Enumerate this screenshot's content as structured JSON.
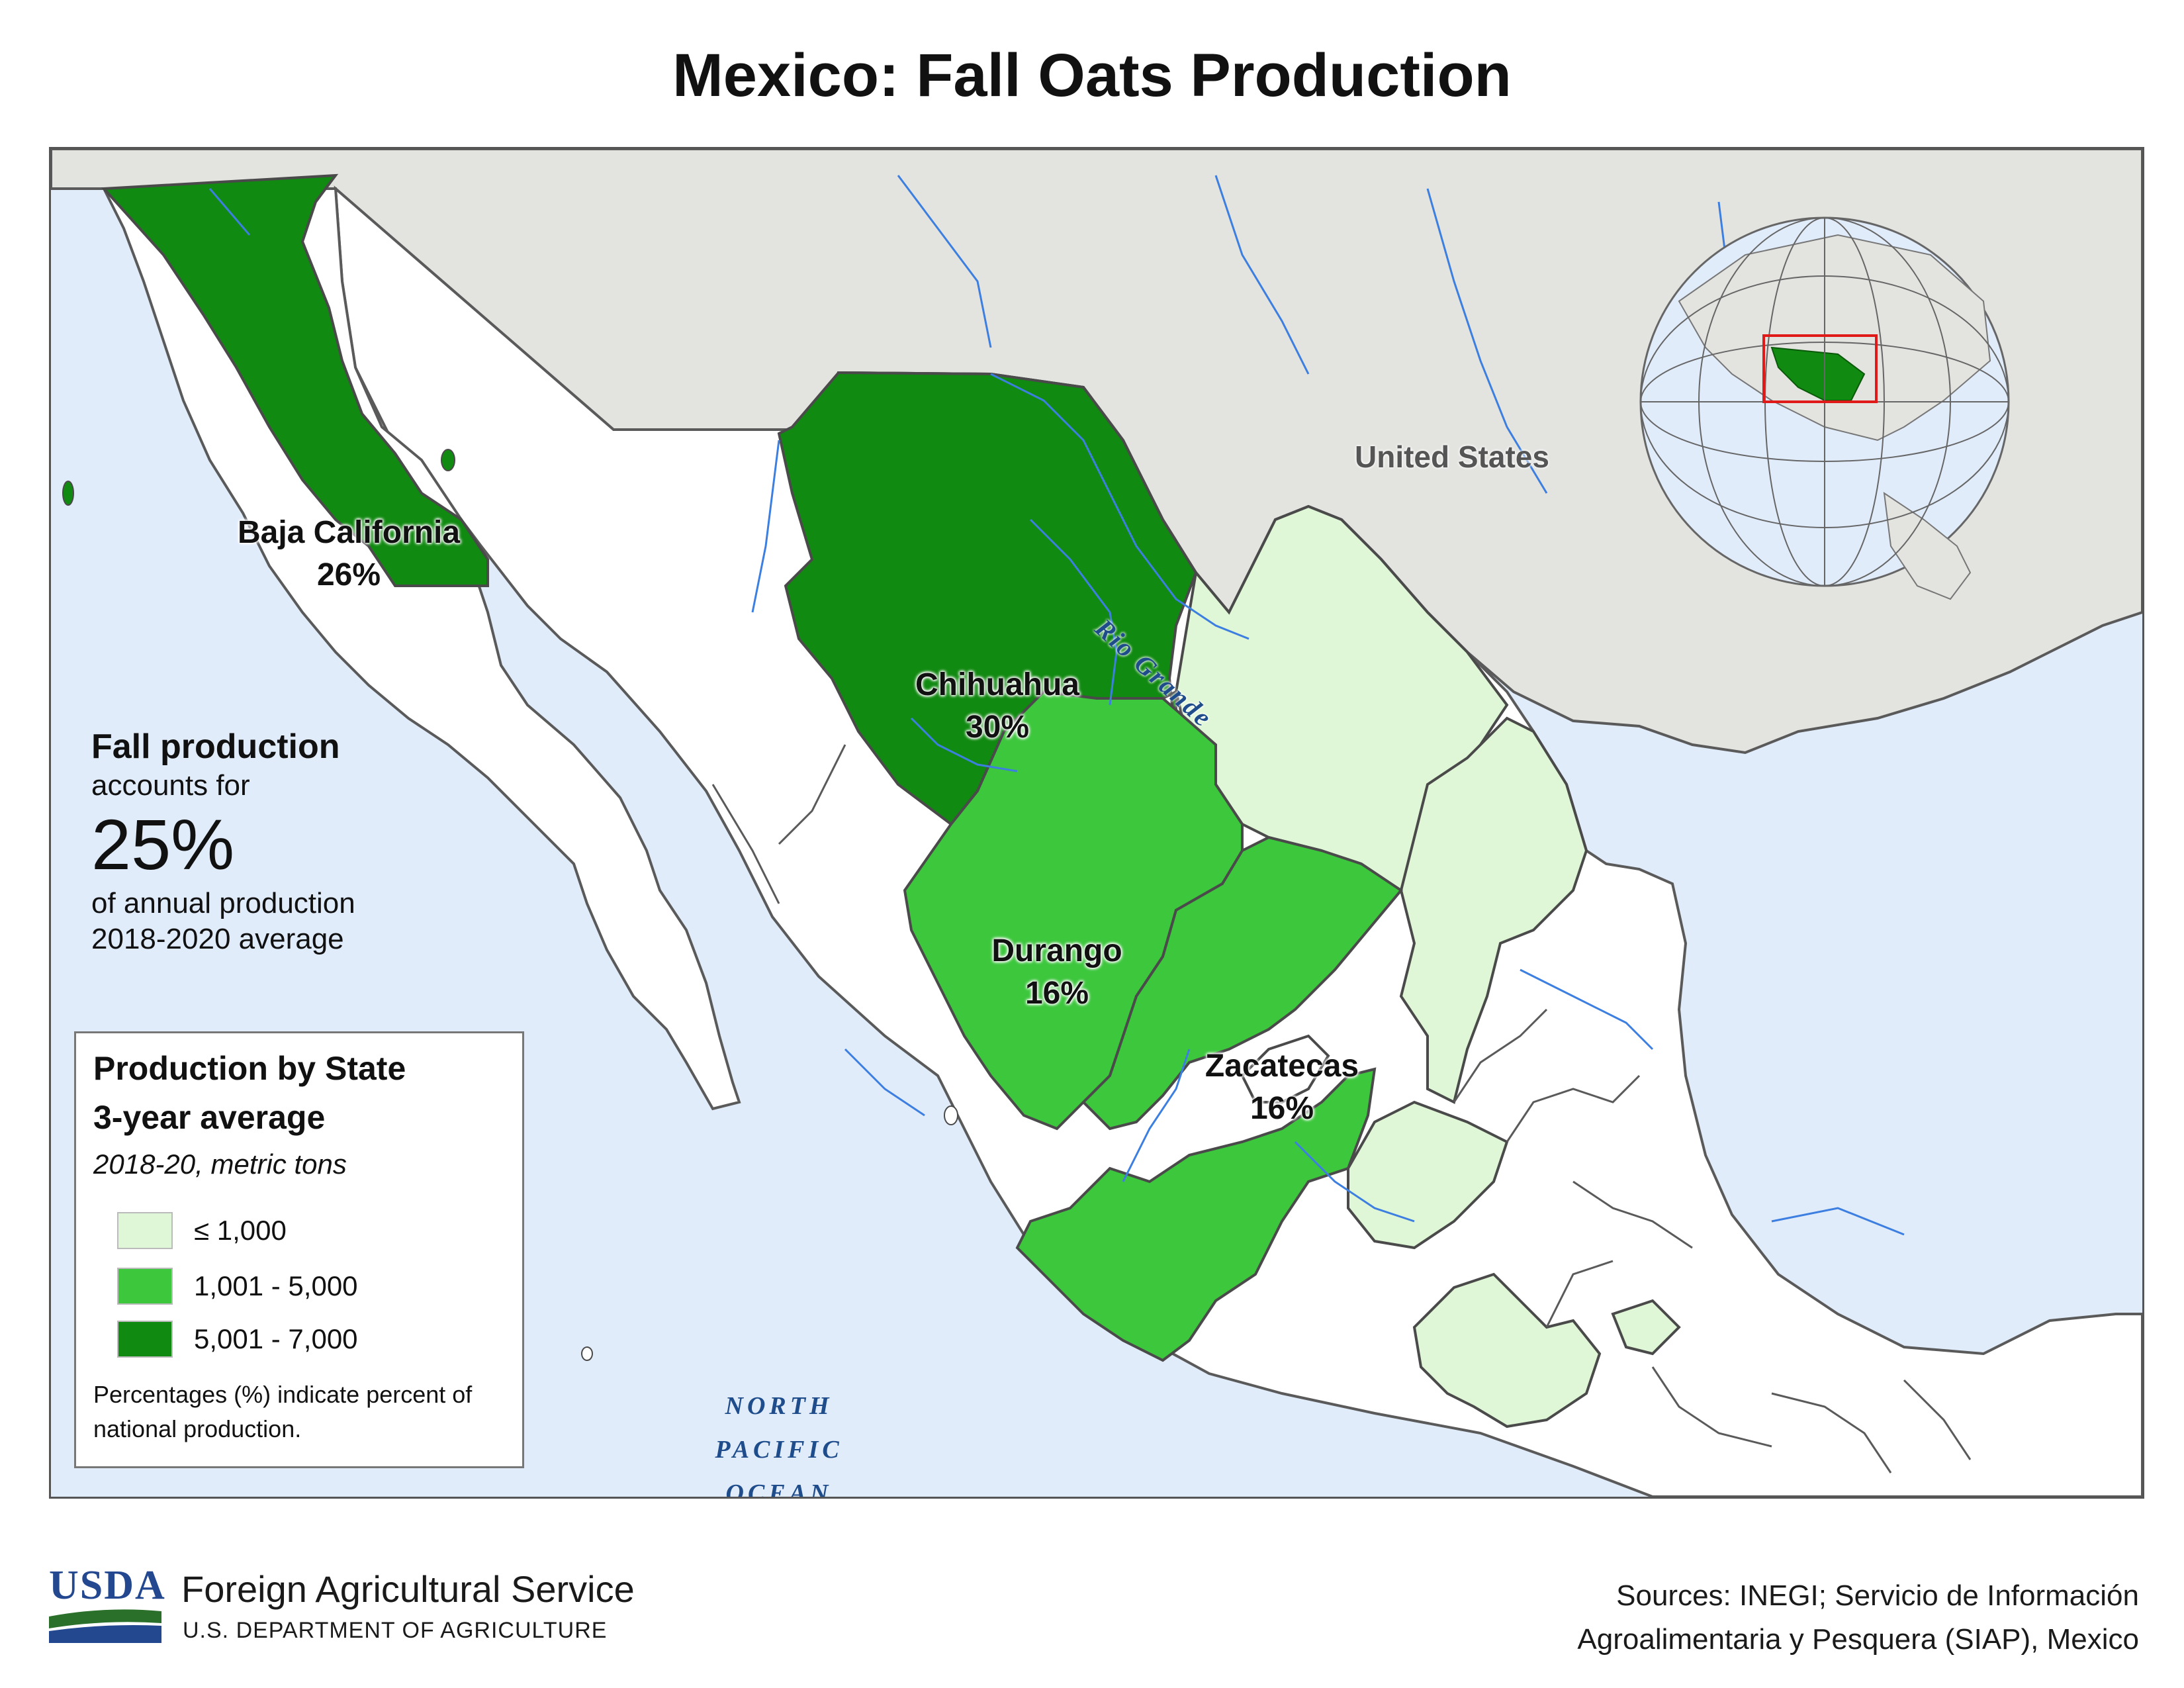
{
  "title": "Mexico: Fall Oats Production",
  "colors": {
    "ocean": "#e1ecfb",
    "us_land": "#e3e3e0",
    "mexico_land": "#ffffff",
    "class_low": "#dff7d6",
    "class_mid": "#3dc73d",
    "class_high": "#118a11",
    "river": "#3d7fe0",
    "border": "#5a5a5a",
    "globe_box": "#e01919"
  },
  "map": {
    "country_label": "United States",
    "ocean_label": [
      "NORTH",
      "PACIFIC",
      "OCEAN"
    ],
    "river_label": "Rio Grande",
    "states": [
      {
        "name": "Baja California",
        "share": "26%",
        "class": "5,001 - 7,000"
      },
      {
        "name": "Chihuahua",
        "share": "30%",
        "class": "5,001 - 7,000"
      },
      {
        "name": "Durango",
        "share": "16%",
        "class": "1,001 - 5,000"
      },
      {
        "name": "Zacatecas",
        "share": "16%",
        "class": "1,001 - 5,000"
      }
    ]
  },
  "callout": {
    "heading": "Fall production",
    "line1": "accounts for",
    "value": "25%",
    "line2": "of annual production",
    "line3": "2018-2020 average"
  },
  "legend": {
    "title1": "Production by State",
    "title2": "3-year average",
    "subtitle": "2018-20, metric tons",
    "items": [
      {
        "label": "≤ 1,000",
        "color": "#dff7d6"
      },
      {
        "label": "1,001 - 5,000",
        "color": "#3dc73d"
      },
      {
        "label": "5,001 - 7,000",
        "color": "#118a11"
      }
    ],
    "note": "Percentages (%) indicate percent of national production."
  },
  "footer": {
    "logo_text": "USDA",
    "agency": "Foreign Agricultural Service",
    "department": "U.S. DEPARTMENT OF AGRICULTURE",
    "sources_line1": "Sources: INEGI; Servicio de Información",
    "sources_line2": "Agroalimentaria y Pesquera (SIAP), Mexico"
  }
}
